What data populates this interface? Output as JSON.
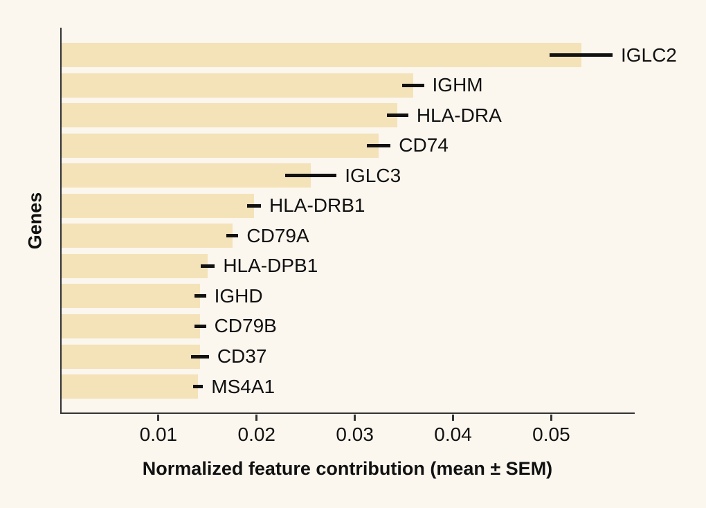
{
  "figure": {
    "background_color": "#FBF6EE",
    "bar_color": "#F4E2B8",
    "axis_color": "#333333",
    "text_color": "#111111"
  },
  "chart_data": {
    "type": "bar",
    "orientation": "horizontal",
    "title": "",
    "xlabel": "Normalized feature contribution (mean ± SEM)",
    "ylabel": "Genes",
    "categories": [
      "IGLC2",
      "IGHM",
      "HLA-DRA",
      "CD74",
      "IGLC3",
      "HLA-DRB1",
      "CD79A",
      "HLA-DPB1",
      "IGHD",
      "CD79B",
      "CD37",
      "MS4A1"
    ],
    "series": [
      {
        "name": "mean",
        "values": [
          0.0529,
          0.0358,
          0.0342,
          0.0323,
          0.0254,
          0.0196,
          0.0174,
          0.0149,
          0.0141,
          0.0141,
          0.0141,
          0.0139
        ]
      },
      {
        "name": "sem",
        "values": [
          0.0032,
          0.0011,
          0.0011,
          0.0012,
          0.0026,
          0.0007,
          0.0006,
          0.0007,
          0.0006,
          0.0006,
          0.0009,
          0.0005
        ]
      }
    ],
    "xlim": [
      0,
      0.0585
    ],
    "xticks": [
      0.01,
      0.02,
      0.03,
      0.04,
      0.05
    ],
    "xtick_labels": [
      "0.01",
      "0.02",
      "0.03",
      "0.04",
      "0.05"
    ],
    "grid": false,
    "legend": false,
    "error_bars": "horizontal, mean ± SEM, no caps",
    "bars_sorted": "descending"
  }
}
